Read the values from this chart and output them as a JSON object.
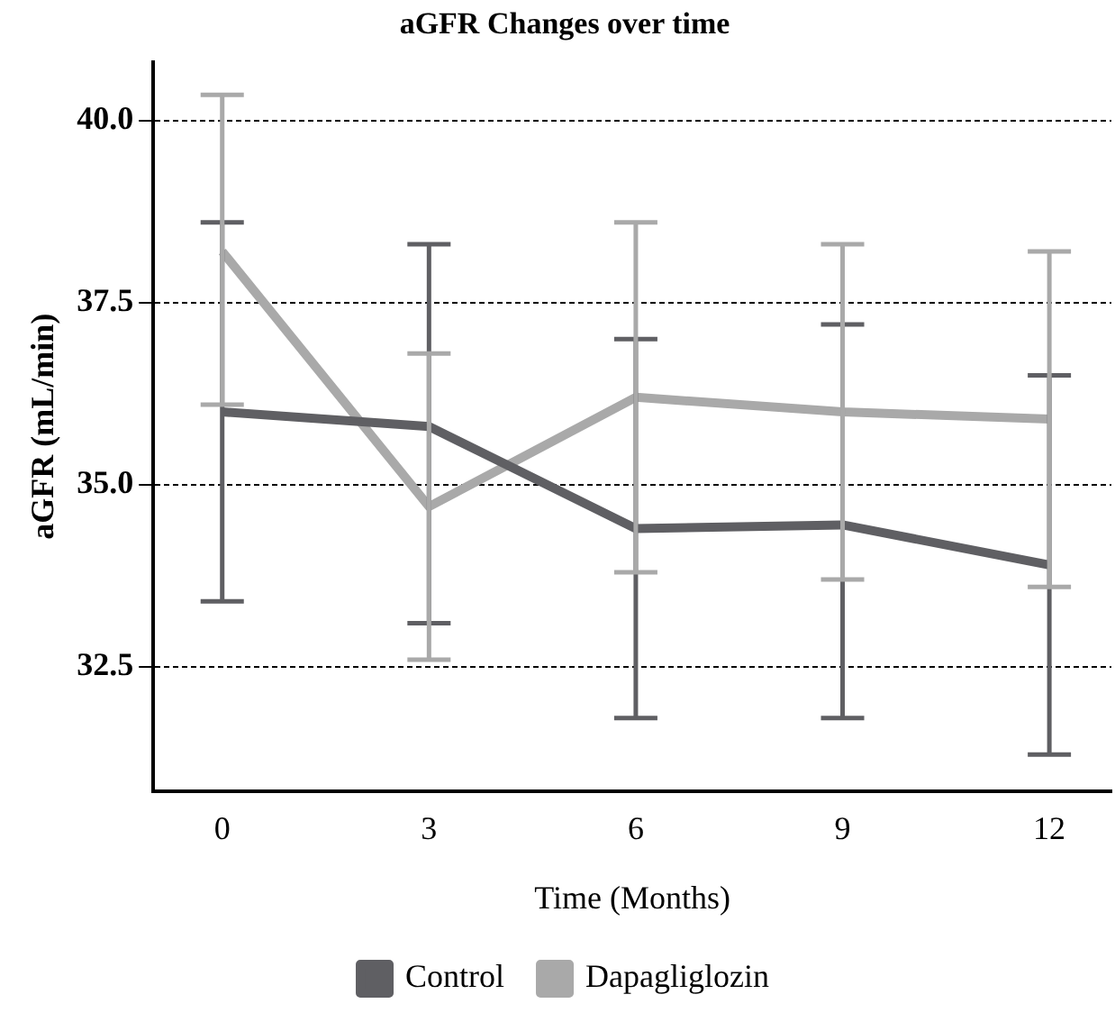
{
  "chart_data": {
    "type": "line",
    "title": "aGFR Changes over time",
    "xlabel": "Time (Months)",
    "ylabel": "aGFR (mL/min)",
    "x": [
      0,
      3,
      6,
      9,
      12
    ],
    "xlim": [
      -1,
      12.9
    ],
    "xticks": [
      0,
      3,
      6,
      9,
      12
    ],
    "ylim": [
      30.8,
      40.8
    ],
    "yticks": [
      32.5,
      {
        "value": 35,
        "label": "35.0"
      },
      37.5,
      {
        "value": 40,
        "label": "40.0"
      }
    ],
    "grid": "y",
    "legend": "bottom",
    "marker": "none",
    "line_style": "solid",
    "series": [
      {
        "name": "Control",
        "color": "#5f5f63",
        "values": [
          36.0,
          35.8,
          34.4,
          34.45,
          33.9
        ],
        "errors": [
          [
            33.4,
            38.6
          ],
          [
            33.1,
            38.3
          ],
          [
            31.8,
            37.0
          ],
          [
            31.8,
            37.2
          ],
          [
            31.3,
            36.5
          ]
        ]
      },
      {
        "name": "Dapagliglozin",
        "color": "#a9a9a9",
        "values": [
          38.2,
          34.7,
          36.2,
          36.0,
          35.9
        ],
        "errors": [
          [
            36.1,
            40.35
          ],
          [
            32.6,
            36.8
          ],
          [
            33.8,
            38.6
          ],
          [
            33.7,
            38.3
          ],
          [
            33.6,
            38.2
          ]
        ]
      }
    ]
  }
}
